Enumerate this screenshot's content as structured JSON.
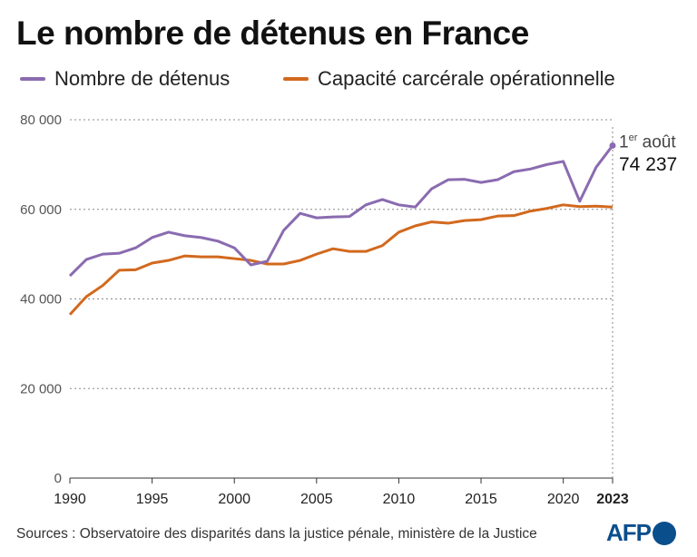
{
  "title": "Le nombre de détenus en France",
  "source": "Sources : Observatoire des disparités dans la justice pénale, ministère de la Justice",
  "logo": "AFP",
  "annotation": {
    "line1_sup": "er",
    "line1_pre": "1",
    "line1_post": " août",
    "value": "74 237"
  },
  "chart_data": {
    "type": "line",
    "title": "Le nombre de détenus en France",
    "xlim": [
      1990,
      2023
    ],
    "ylim": [
      0,
      80000
    ],
    "grid": true,
    "legend": "top",
    "x_ticks": [
      1990,
      1995,
      2000,
      2005,
      2010,
      2015,
      2020,
      2023
    ],
    "x_tick_labels": [
      "1990",
      "1995",
      "2000",
      "2005",
      "2010",
      "2015",
      "2020",
      "2023"
    ],
    "y_ticks": [
      0,
      20000,
      40000,
      60000,
      80000
    ],
    "y_tick_labels": [
      "0",
      "20 000",
      "40 000",
      "60 000",
      "80 000"
    ],
    "x": [
      1990,
      1991,
      1992,
      1993,
      1994,
      1995,
      1996,
      1997,
      1998,
      1999,
      2000,
      2001,
      2002,
      2003,
      2004,
      2005,
      2006,
      2007,
      2008,
      2009,
      2010,
      2011,
      2012,
      2013,
      2014,
      2015,
      2016,
      2017,
      2018,
      2019,
      2020,
      2021,
      2022,
      2023
    ],
    "series": [
      {
        "name": "Nombre de détenus",
        "color": "#8a6bb0",
        "values": [
          45150,
          48800,
          50000,
          50200,
          51400,
          53700,
          54900,
          54100,
          53700,
          52900,
          51400,
          47600,
          48400,
          55300,
          59100,
          58100,
          58300,
          58400,
          61000,
          62200,
          61000,
          60500,
          64600,
          66600,
          66700,
          66000,
          66600,
          68400,
          69000,
          70000,
          70700,
          61800,
          69400,
          74237
        ]
      },
      {
        "name": "Capacité carcérale opérationnelle",
        "color": "#d2691e",
        "values": [
          36500,
          40500,
          43000,
          46400,
          46500,
          48000,
          48600,
          49600,
          49400,
          49400,
          49000,
          48600,
          47800,
          47800,
          48600,
          50000,
          51200,
          50600,
          50600,
          51900,
          54900,
          56300,
          57200,
          56900,
          57500,
          57700,
          58500,
          58600,
          59600,
          60200,
          61000,
          60600,
          60700,
          60500
        ]
      }
    ]
  }
}
